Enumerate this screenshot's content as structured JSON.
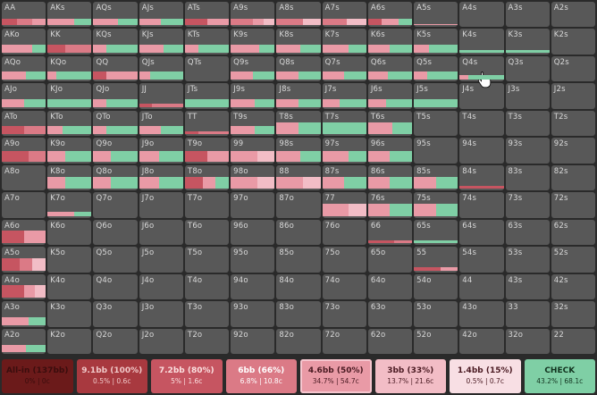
{
  "colors": {
    "cell_bg": "#585858",
    "page_bg": "#2a2a2a",
    "check": "#7fcfa5",
    "allin": "#6b1a1a",
    "bet_9_1": "#a8393f",
    "bet_7_2": "#c65561",
    "bet_6": "#db7a86",
    "bet_4_6": "#e99aa6",
    "bet_3": "#f2bdc6",
    "bet_1_4": "#f8dfe4"
  },
  "actions": [
    {
      "name": "All-in (137bb)",
      "stats": "0% | 0c",
      "bg": "#6b1a1a",
      "fg": "#3a0d0d"
    },
    {
      "name": "9.1bb (100%)",
      "stats": "0.5% | 0.6c",
      "bg": "#a8393f",
      "fg": "#f0c8c8"
    },
    {
      "name": "7.2bb (80%)",
      "stats": "5% | 1.6c",
      "bg": "#c65561",
      "fg": "#fbe0e0"
    },
    {
      "name": "6bb (66%)",
      "stats": "6.8% | 10.8c",
      "bg": "#db7a86",
      "fg": "#ffffff"
    },
    {
      "name": "4.6bb (50%)",
      "stats": "34.7% | 54.7c",
      "bg": "#e99aa6",
      "fg": "#4a1a22",
      "border": "#f6c6cf"
    },
    {
      "name": "3bb (33%)",
      "stats": "13.7% | 21.6c",
      "bg": "#f2bdc6",
      "fg": "#4a1a22"
    },
    {
      "name": "1.4bb (15%)",
      "stats": "0.5% | 0.7c",
      "bg": "#f8dfe4",
      "fg": "#4a1a22"
    },
    {
      "name": "CHECK",
      "stats": "43.2% | 68.1c",
      "bg": "#7fcfa5",
      "fg": "#12331f"
    }
  ],
  "hands": [
    [
      "AA",
      "AKs",
      "AQs",
      "AJs",
      "ATs",
      "A9s",
      "A8s",
      "A7s",
      "A6s",
      "A5s",
      "A4s",
      "A3s",
      "A2s"
    ],
    [
      "AKo",
      "KK",
      "KQs",
      "KJs",
      "KTs",
      "K9s",
      "K8s",
      "K7s",
      "K6s",
      "K5s",
      "K4s",
      "K3s",
      "K2s"
    ],
    [
      "AQo",
      "KQo",
      "QQ",
      "QJs",
      "QTs",
      "Q9s",
      "Q8s",
      "Q7s",
      "Q6s",
      "Q5s",
      "Q4s",
      "Q3s",
      "Q2s"
    ],
    [
      "AJo",
      "KJo",
      "QJo",
      "JJ",
      "JTs",
      "J9s",
      "J8s",
      "J7s",
      "J6s",
      "J5s",
      "J4s",
      "J3s",
      "J2s"
    ],
    [
      "ATo",
      "KTo",
      "QTo",
      "JTo",
      "TT",
      "T9s",
      "T8s",
      "T7s",
      "T6s",
      "T5s",
      "T4s",
      "T3s",
      "T2s"
    ],
    [
      "A9o",
      "K9o",
      "Q9o",
      "J9o",
      "T9o",
      "99",
      "98s",
      "97s",
      "96s",
      "95s",
      "94s",
      "93s",
      "92s"
    ],
    [
      "A8o",
      "K8o",
      "Q8o",
      "J8o",
      "T8o",
      "98o",
      "88",
      "87s",
      "86s",
      "85s",
      "84s",
      "83s",
      "82s"
    ],
    [
      "A7o",
      "K7o",
      "Q7o",
      "J7o",
      "T7o",
      "97o",
      "87o",
      "77",
      "76s",
      "75s",
      "74s",
      "73s",
      "72s"
    ],
    [
      "A6o",
      "K6o",
      "Q6o",
      "J6o",
      "T6o",
      "96o",
      "86o",
      "76o",
      "66",
      "65s",
      "64s",
      "63s",
      "62s"
    ],
    [
      "A5o",
      "K5o",
      "Q5o",
      "J5o",
      "T5o",
      "95o",
      "85o",
      "75o",
      "65o",
      "55",
      "54s",
      "53s",
      "52s"
    ],
    [
      "A4o",
      "K4o",
      "Q4o",
      "J4o",
      "T4o",
      "94o",
      "84o",
      "74o",
      "64o",
      "54o",
      "44",
      "43s",
      "42s"
    ],
    [
      "A3o",
      "K3o",
      "Q3o",
      "J3o",
      "T3o",
      "93o",
      "83o",
      "73o",
      "63o",
      "53o",
      "43o",
      "33",
      "32s"
    ],
    [
      "A2o",
      "K2o",
      "Q2o",
      "J2o",
      "T2o",
      "92o",
      "82o",
      "72o",
      "62o",
      "52o",
      "42o",
      "32o",
      "22"
    ]
  ],
  "freq_bars": {
    "AA": {
      "h": 0.26,
      "segs": [
        [
          "#c65561",
          0.35
        ],
        [
          "#db7a86",
          0.35
        ],
        [
          "#e99aa6",
          0.3
        ]
      ]
    },
    "AKs": {
      "h": 0.28,
      "segs": [
        [
          "#e99aa6",
          0.6
        ],
        [
          "#7fcfa5",
          0.4
        ]
      ]
    },
    "AQs": {
      "h": 0.28,
      "segs": [
        [
          "#e99aa6",
          0.55
        ],
        [
          "#7fcfa5",
          0.45
        ]
      ]
    },
    "AJs": {
      "h": 0.28,
      "segs": [
        [
          "#e99aa6",
          0.5
        ],
        [
          "#7fcfa5",
          0.5
        ]
      ]
    },
    "ATs": {
      "h": 0.28,
      "segs": [
        [
          "#c65561",
          0.5
        ],
        [
          "#e99aa6",
          0.5
        ]
      ]
    },
    "A9s": {
      "h": 0.28,
      "segs": [
        [
          "#db7a86",
          0.5
        ],
        [
          "#e99aa6",
          0.25
        ],
        [
          "#f2bdc6",
          0.25
        ]
      ]
    },
    "A8s": {
      "h": 0.28,
      "segs": [
        [
          "#db7a86",
          0.6
        ],
        [
          "#f2bdc6",
          0.4
        ]
      ]
    },
    "A7s": {
      "h": 0.28,
      "segs": [
        [
          "#db7a86",
          0.55
        ],
        [
          "#f2bdc6",
          0.45
        ]
      ]
    },
    "A6s": {
      "h": 0.28,
      "segs": [
        [
          "#c65561",
          0.3
        ],
        [
          "#e99aa6",
          0.4
        ],
        [
          "#7fcfa5",
          0.3
        ]
      ]
    },
    "A5s": {
      "h": 0.06,
      "segs": [
        [
          "#e99aa6",
          1
        ]
      ]
    },
    "AKo": {
      "h": 0.3,
      "segs": [
        [
          "#e99aa6",
          0.7
        ],
        [
          "#7fcfa5",
          0.3
        ]
      ]
    },
    "KK": {
      "h": 0.3,
      "segs": [
        [
          "#c65561",
          0.4
        ],
        [
          "#db7a86",
          0.6
        ]
      ]
    },
    "KQs": {
      "h": 0.3,
      "segs": [
        [
          "#e99aa6",
          0.3
        ],
        [
          "#7fcfa5",
          0.7
        ]
      ]
    },
    "KJs": {
      "h": 0.3,
      "segs": [
        [
          "#e99aa6",
          0.55
        ],
        [
          "#7fcfa5",
          0.45
        ]
      ]
    },
    "KTs": {
      "h": 0.3,
      "segs": [
        [
          "#e99aa6",
          0.3
        ],
        [
          "#7fcfa5",
          0.7
        ]
      ]
    },
    "K9s": {
      "h": 0.3,
      "segs": [
        [
          "#e99aa6",
          0.65
        ],
        [
          "#7fcfa5",
          0.35
        ]
      ]
    },
    "K8s": {
      "h": 0.3,
      "segs": [
        [
          "#e99aa6",
          0.55
        ],
        [
          "#7fcfa5",
          0.45
        ]
      ]
    },
    "K7s": {
      "h": 0.3,
      "segs": [
        [
          "#e99aa6",
          0.6
        ],
        [
          "#7fcfa5",
          0.4
        ]
      ]
    },
    "K6s": {
      "h": 0.3,
      "segs": [
        [
          "#e99aa6",
          0.5
        ],
        [
          "#7fcfa5",
          0.5
        ]
      ]
    },
    "K5s": {
      "h": 0.3,
      "segs": [
        [
          "#e99aa6",
          0.35
        ],
        [
          "#7fcfa5",
          0.65
        ]
      ]
    },
    "K4s": {
      "h": 0.12,
      "segs": [
        [
          "#7fcfa5",
          1
        ]
      ]
    },
    "K3s": {
      "h": 0.12,
      "segs": [
        [
          "#7fcfa5",
          1
        ]
      ]
    },
    "AQo": {
      "h": 0.32,
      "segs": [
        [
          "#e99aa6",
          0.55
        ],
        [
          "#7fcfa5",
          0.45
        ]
      ]
    },
    "KQo": {
      "h": 0.32,
      "segs": [
        [
          "#e99aa6",
          0.2
        ],
        [
          "#7fcfa5",
          0.8
        ]
      ]
    },
    "QQ": {
      "h": 0.32,
      "segs": [
        [
          "#c65561",
          0.3
        ],
        [
          "#e99aa6",
          0.7
        ]
      ]
    },
    "QJs": {
      "h": 0.32,
      "segs": [
        [
          "#e99aa6",
          0.25
        ],
        [
          "#7fcfa5",
          0.75
        ]
      ]
    },
    "Q9s": {
      "h": 0.32,
      "segs": [
        [
          "#e99aa6",
          0.5
        ],
        [
          "#7fcfa5",
          0.5
        ]
      ]
    },
    "Q8s": {
      "h": 0.32,
      "segs": [
        [
          "#e99aa6",
          0.5
        ],
        [
          "#7fcfa5",
          0.5
        ]
      ]
    },
    "Q7s": {
      "h": 0.32,
      "segs": [
        [
          "#e99aa6",
          0.5
        ],
        [
          "#7fcfa5",
          0.5
        ]
      ]
    },
    "Q6s": {
      "h": 0.32,
      "segs": [
        [
          "#e99aa6",
          0.45
        ],
        [
          "#7fcfa5",
          0.55
        ]
      ]
    },
    "Q5s": {
      "h": 0.32,
      "segs": [
        [
          "#e99aa6",
          0.3
        ],
        [
          "#7fcfa5",
          0.7
        ]
      ]
    },
    "Q4s": {
      "h": 0.18,
      "segs": [
        [
          "#e99aa6",
          0.2
        ],
        [
          "#7fcfa5",
          0.8
        ]
      ]
    },
    "AJo": {
      "h": 0.32,
      "segs": [
        [
          "#e99aa6",
          0.5
        ],
        [
          "#7fcfa5",
          0.5
        ]
      ]
    },
    "KJo": {
      "h": 0.32,
      "segs": [
        [
          "#7fcfa5",
          1
        ]
      ]
    },
    "QJo": {
      "h": 0.32,
      "segs": [
        [
          "#e99aa6",
          0.3
        ],
        [
          "#7fcfa5",
          0.7
        ]
      ]
    },
    "JJ": {
      "h": 0.12,
      "segs": [
        [
          "#c65561",
          0.3
        ],
        [
          "#db7a86",
          0.7
        ]
      ]
    },
    "JTs": {
      "h": 0.32,
      "segs": [
        [
          "#7fcfa5",
          1
        ]
      ]
    },
    "J9s": {
      "h": 0.32,
      "segs": [
        [
          "#e99aa6",
          0.55
        ],
        [
          "#7fcfa5",
          0.45
        ]
      ]
    },
    "J8s": {
      "h": 0.32,
      "segs": [
        [
          "#e99aa6",
          0.5
        ],
        [
          "#7fcfa5",
          0.5
        ]
      ]
    },
    "J7s": {
      "h": 0.32,
      "segs": [
        [
          "#e99aa6",
          0.4
        ],
        [
          "#7fcfa5",
          0.6
        ]
      ]
    },
    "J6s": {
      "h": 0.32,
      "segs": [
        [
          "#e99aa6",
          0.4
        ],
        [
          "#7fcfa5",
          0.6
        ]
      ]
    },
    "J5s": {
      "h": 0.32,
      "segs": [
        [
          "#7fcfa5",
          1
        ]
      ]
    },
    "ATo": {
      "h": 0.32,
      "segs": [
        [
          "#c65561",
          0.5
        ],
        [
          "#db7a86",
          0.5
        ]
      ]
    },
    "KTo": {
      "h": 0.32,
      "segs": [
        [
          "#e99aa6",
          0.35
        ],
        [
          "#7fcfa5",
          0.65
        ]
      ]
    },
    "QTo": {
      "h": 0.32,
      "segs": [
        [
          "#e99aa6",
          0.3
        ],
        [
          "#7fcfa5",
          0.7
        ]
      ]
    },
    "JTo": {
      "h": 0.32,
      "segs": [
        [
          "#e99aa6",
          0.5
        ],
        [
          "#7fcfa5",
          0.5
        ]
      ]
    },
    "TT": {
      "h": 0.12,
      "segs": [
        [
          "#c65561",
          0.3
        ],
        [
          "#db7a86",
          0.7
        ]
      ]
    },
    "T9s": {
      "h": 0.32,
      "segs": [
        [
          "#e99aa6",
          0.55
        ],
        [
          "#7fcfa5",
          0.45
        ]
      ]
    },
    "T8s": {
      "h": 0.48,
      "segs": [
        [
          "#e99aa6",
          0.5
        ],
        [
          "#7fcfa5",
          0.5
        ]
      ]
    },
    "T7s": {
      "h": 0.48,
      "segs": [
        [
          "#7fcfa5",
          1
        ]
      ]
    },
    "T6s": {
      "h": 0.48,
      "segs": [
        [
          "#e99aa6",
          0.55
        ],
        [
          "#7fcfa5",
          0.45
        ]
      ]
    },
    "A9o": {
      "h": 0.42,
      "segs": [
        [
          "#c65561",
          0.6
        ],
        [
          "#db7a86",
          0.4
        ]
      ]
    },
    "K9o": {
      "h": 0.42,
      "segs": [
        [
          "#e99aa6",
          0.4
        ],
        [
          "#7fcfa5",
          0.6
        ]
      ]
    },
    "Q9o": {
      "h": 0.42,
      "segs": [
        [
          "#e99aa6",
          0.4
        ],
        [
          "#7fcfa5",
          0.6
        ]
      ]
    },
    "J9o": {
      "h": 0.42,
      "segs": [
        [
          "#e99aa6",
          0.45
        ],
        [
          "#7fcfa5",
          0.55
        ]
      ]
    },
    "T9o": {
      "h": 0.42,
      "segs": [
        [
          "#c65561",
          0.5
        ],
        [
          "#e99aa6",
          0.5
        ]
      ]
    },
    "99": {
      "h": 0.42,
      "segs": [
        [
          "#e99aa6",
          0.6
        ],
        [
          "#f2bdc6",
          0.4
        ]
      ]
    },
    "98s": {
      "h": 0.42,
      "segs": [
        [
          "#e99aa6",
          0.55
        ],
        [
          "#7fcfa5",
          0.45
        ]
      ]
    },
    "97s": {
      "h": 0.42,
      "segs": [
        [
          "#e99aa6",
          0.6
        ],
        [
          "#7fcfa5",
          0.4
        ]
      ]
    },
    "96s": {
      "h": 0.42,
      "segs": [
        [
          "#e99aa6",
          0.5
        ],
        [
          "#7fcfa5",
          0.5
        ]
      ]
    },
    "K8o": {
      "h": 0.46,
      "segs": [
        [
          "#e99aa6",
          0.4
        ],
        [
          "#7fcfa5",
          0.6
        ]
      ]
    },
    "Q8o": {
      "h": 0.46,
      "segs": [
        [
          "#e99aa6",
          0.4
        ],
        [
          "#7fcfa5",
          0.6
        ]
      ]
    },
    "J8o": {
      "h": 0.46,
      "segs": [
        [
          "#e99aa6",
          0.45
        ],
        [
          "#7fcfa5",
          0.55
        ]
      ]
    },
    "T8o": {
      "h": 0.46,
      "segs": [
        [
          "#c65561",
          0.4
        ],
        [
          "#e99aa6",
          0.3
        ],
        [
          "#7fcfa5",
          0.3
        ]
      ]
    },
    "98o": {
      "h": 0.46,
      "segs": [
        [
          "#e99aa6",
          0.6
        ],
        [
          "#f2bdc6",
          0.4
        ]
      ]
    },
    "88": {
      "h": 0.46,
      "segs": [
        [
          "#e99aa6",
          0.6
        ],
        [
          "#f2bdc6",
          0.4
        ]
      ]
    },
    "87s": {
      "h": 0.46,
      "segs": [
        [
          "#e99aa6",
          0.5
        ],
        [
          "#7fcfa5",
          0.5
        ]
      ]
    },
    "86s": {
      "h": 0.46,
      "segs": [
        [
          "#e99aa6",
          0.5
        ],
        [
          "#7fcfa5",
          0.5
        ]
      ]
    },
    "85s": {
      "h": 0.46,
      "segs": [
        [
          "#e99aa6",
          0.5
        ],
        [
          "#7fcfa5",
          0.5
        ]
      ]
    },
    "84s": {
      "h": 0.12,
      "segs": [
        [
          "#c65561",
          1
        ]
      ]
    },
    "K7o": {
      "h": 0.18,
      "segs": [
        [
          "#e99aa6",
          0.6
        ],
        [
          "#7fcfa5",
          0.4
        ]
      ]
    },
    "77": {
      "h": 0.48,
      "segs": [
        [
          "#e99aa6",
          0.6
        ],
        [
          "#f2bdc6",
          0.4
        ]
      ]
    },
    "76s": {
      "h": 0.48,
      "segs": [
        [
          "#e99aa6",
          0.5
        ],
        [
          "#7fcfa5",
          0.5
        ]
      ]
    },
    "75s": {
      "h": 0.48,
      "segs": [
        [
          "#e99aa6",
          0.5
        ],
        [
          "#7fcfa5",
          0.5
        ]
      ]
    },
    "A6o": {
      "h": 0.48,
      "segs": [
        [
          "#c65561",
          0.5
        ],
        [
          "#e99aa6",
          0.5
        ]
      ]
    },
    "66": {
      "h": 0.12,
      "segs": [
        [
          "#c65561",
          0.6
        ],
        [
          "#db7a86",
          0.4
        ]
      ]
    },
    "65s": {
      "h": 0.12,
      "segs": [
        [
          "#7fcfa5",
          1
        ]
      ]
    },
    "A5o": {
      "h": 0.48,
      "segs": [
        [
          "#c65561",
          0.4
        ],
        [
          "#db7a86",
          0.3
        ],
        [
          "#f2bdc6",
          0.3
        ]
      ]
    },
    "55": {
      "h": 0.12,
      "segs": [
        [
          "#c65561",
          0.6
        ],
        [
          "#e99aa6",
          0.4
        ]
      ]
    },
    "A4o": {
      "h": 0.48,
      "segs": [
        [
          "#c65561",
          0.5
        ],
        [
          "#e99aa6",
          0.25
        ],
        [
          "#f2bdc6",
          0.25
        ]
      ]
    },
    "A3o": {
      "h": 0.3,
      "segs": [
        [
          "#e99aa6",
          0.6
        ],
        [
          "#7fcfa5",
          0.4
        ]
      ]
    },
    "A2o": {
      "h": 0.28,
      "segs": [
        [
          "#e99aa6",
          0.55
        ],
        [
          "#7fcfa5",
          0.45
        ]
      ]
    }
  }
}
